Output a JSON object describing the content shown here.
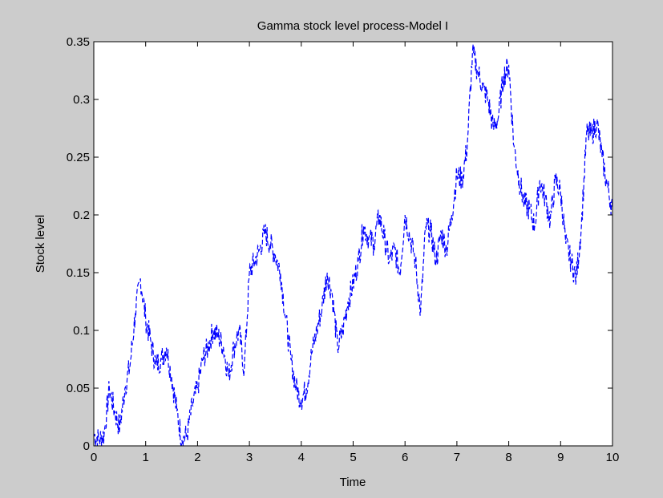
{
  "colors": {
    "figure_background": "#cccccc",
    "axes_background": "#ffffff",
    "axes_color": "#000000",
    "line_color": "#0000ff"
  },
  "chart_data": {
    "type": "line",
    "title": "Gamma stock level process-Model I",
    "xlabel": "Time",
    "ylabel": "Stock level",
    "xlim": [
      0,
      10
    ],
    "ylim": [
      0,
      0.35
    ],
    "xticks": [
      0,
      1,
      2,
      3,
      4,
      5,
      6,
      7,
      8,
      9,
      10
    ],
    "xtick_labels": [
      "0",
      "1",
      "2",
      "3",
      "4",
      "5",
      "6",
      "7",
      "8",
      "9",
      "10"
    ],
    "yticks": [
      0,
      0.05,
      0.1,
      0.15,
      0.2,
      0.25,
      0.3,
      0.35
    ],
    "ytick_labels": [
      "0",
      "0.05",
      "0.1",
      "0.15",
      "0.2",
      "0.25",
      "0.3",
      "0.35"
    ],
    "grid": false,
    "line_style": "dashed",
    "series": [
      {
        "color": "#0000ff",
        "x": [
          0.0,
          0.1,
          0.2,
          0.3,
          0.4,
          0.5,
          0.6,
          0.7,
          0.8,
          0.9,
          1.0,
          1.1,
          1.2,
          1.3,
          1.4,
          1.5,
          1.6,
          1.7,
          1.8,
          1.9,
          2.0,
          2.1,
          2.2,
          2.3,
          2.4,
          2.5,
          2.6,
          2.7,
          2.8,
          2.9,
          3.0,
          3.1,
          3.2,
          3.3,
          3.4,
          3.5,
          3.6,
          3.7,
          3.8,
          3.9,
          4.0,
          4.1,
          4.2,
          4.3,
          4.4,
          4.5,
          4.6,
          4.7,
          4.8,
          4.9,
          5.0,
          5.1,
          5.2,
          5.3,
          5.4,
          5.5,
          5.6,
          5.7,
          5.8,
          5.9,
          6.0,
          6.1,
          6.2,
          6.3,
          6.4,
          6.5,
          6.6,
          6.7,
          6.8,
          6.9,
          7.0,
          7.1,
          7.2,
          7.3,
          7.4,
          7.5,
          7.6,
          7.7,
          7.8,
          7.9,
          8.0,
          8.1,
          8.2,
          8.3,
          8.4,
          8.5,
          8.6,
          8.7,
          8.8,
          8.9,
          9.0,
          9.1,
          9.2,
          9.3,
          9.4,
          9.5,
          9.6,
          9.7,
          9.8,
          9.9,
          10.0
        ],
        "values": [
          0.01,
          0.005,
          0.01,
          0.05,
          0.03,
          0.015,
          0.05,
          0.07,
          0.115,
          0.145,
          0.11,
          0.09,
          0.07,
          0.075,
          0.085,
          0.06,
          0.03,
          0.005,
          0.01,
          0.035,
          0.05,
          0.075,
          0.085,
          0.1,
          0.095,
          0.085,
          0.06,
          0.085,
          0.1,
          0.065,
          0.15,
          0.16,
          0.17,
          0.185,
          0.175,
          0.165,
          0.15,
          0.11,
          0.075,
          0.05,
          0.04,
          0.05,
          0.08,
          0.1,
          0.12,
          0.15,
          0.13,
          0.085,
          0.1,
          0.125,
          0.14,
          0.16,
          0.19,
          0.18,
          0.175,
          0.2,
          0.18,
          0.16,
          0.17,
          0.15,
          0.2,
          0.18,
          0.16,
          0.115,
          0.19,
          0.185,
          0.16,
          0.185,
          0.17,
          0.2,
          0.235,
          0.23,
          0.26,
          0.34,
          0.325,
          0.31,
          0.3,
          0.275,
          0.285,
          0.32,
          0.33,
          0.26,
          0.23,
          0.21,
          0.205,
          0.19,
          0.23,
          0.215,
          0.195,
          0.23,
          0.22,
          0.175,
          0.16,
          0.145,
          0.19,
          0.27,
          0.27,
          0.28,
          0.25,
          0.225,
          0.205
        ]
      }
    ]
  }
}
